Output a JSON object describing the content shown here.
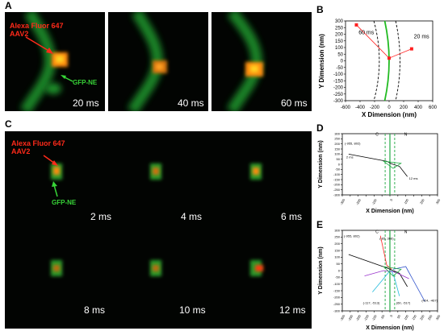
{
  "panels": {
    "A": {
      "letter": "A",
      "label_red_line1": "Alexa Fluor 647",
      "label_red_line2": "AAV2",
      "label_green": "GFP-NE",
      "times": [
        "20 ms",
        "40 ms",
        "60 ms"
      ]
    },
    "C": {
      "letter": "C",
      "label_red_line1": "Alexa Fluor 647",
      "label_red_line2": "AAV2",
      "label_green": "GFP-NE",
      "times": [
        "2 ms",
        "4 ms",
        "6 ms",
        "8 ms",
        "10 ms",
        "12 ms"
      ]
    },
    "B": {
      "letter": "B"
    },
    "D": {
      "letter": "D"
    },
    "E": {
      "letter": "E"
    }
  },
  "chart_data": [
    {
      "panel": "B",
      "type": "line",
      "xlabel": "X Dimension (nm)",
      "ylabel": "Y Dimension (nm)",
      "xlim": [
        -600,
        600
      ],
      "ylim": [
        -300,
        300
      ],
      "x_ticks": [
        -600,
        -400,
        -200,
        0,
        200,
        400,
        600
      ],
      "y_ticks": [
        300,
        250,
        200,
        150,
        100,
        50,
        0,
        -50,
        -100,
        -150,
        -200,
        -250,
        -300
      ],
      "trajectory": [
        [
          -450,
          270
        ],
        [
          0,
          20
        ],
        [
          310,
          90
        ]
      ],
      "annotations": [
        "60 ms",
        "20 ms"
      ],
      "colors": {
        "envelope": "#22bb22",
        "trajectory": "#ff2020",
        "boundary": "#000000"
      }
    },
    {
      "panel": "D",
      "type": "line",
      "xlabel": "X Dimension (nm)",
      "ylabel": "Y Dimension (nm)",
      "xlim": [
        -300,
        300
      ],
      "ylim": [
        -300,
        300
      ],
      "x_ticks": [
        -300,
        -250,
        -200,
        -150,
        -100,
        -50,
        0,
        50,
        100,
        150,
        200,
        250,
        300
      ],
      "y_ticks": [
        300,
        250,
        200,
        150,
        100,
        50,
        0,
        -50,
        -100,
        -150,
        -200,
        -250,
        -300
      ],
      "start_point_label": "(-955, 802)",
      "side_labels": [
        "C",
        "N"
      ],
      "time_labels": [
        "2 ms",
        "12 ms"
      ],
      "trajectory": [
        [
          -260,
          100
        ],
        [
          -20,
          30
        ],
        [
          10,
          5
        ],
        [
          60,
          -20
        ],
        [
          110,
          -120
        ]
      ]
    },
    {
      "panel": "E",
      "type": "line",
      "xlabel": "X Dimension (nm)",
      "ylabel": "Y Dimension (nm)",
      "xlim": [
        -300,
        300
      ],
      "ylim": [
        -300,
        300
      ],
      "x_ticks": [
        -300,
        -250,
        -200,
        -150,
        -100,
        -50,
        0,
        50,
        100,
        150,
        200,
        250,
        300
      ],
      "y_ticks": [
        300,
        250,
        200,
        150,
        100,
        50,
        0,
        -50,
        -100,
        -150,
        -200,
        -250,
        -300
      ],
      "side_labels": [
        "C",
        "N"
      ],
      "point_labels": [
        "(-955, 802)",
        "(-65, 366)",
        "(-117, -513)",
        "(60, -517)",
        "(424, -467)"
      ]
    }
  ]
}
